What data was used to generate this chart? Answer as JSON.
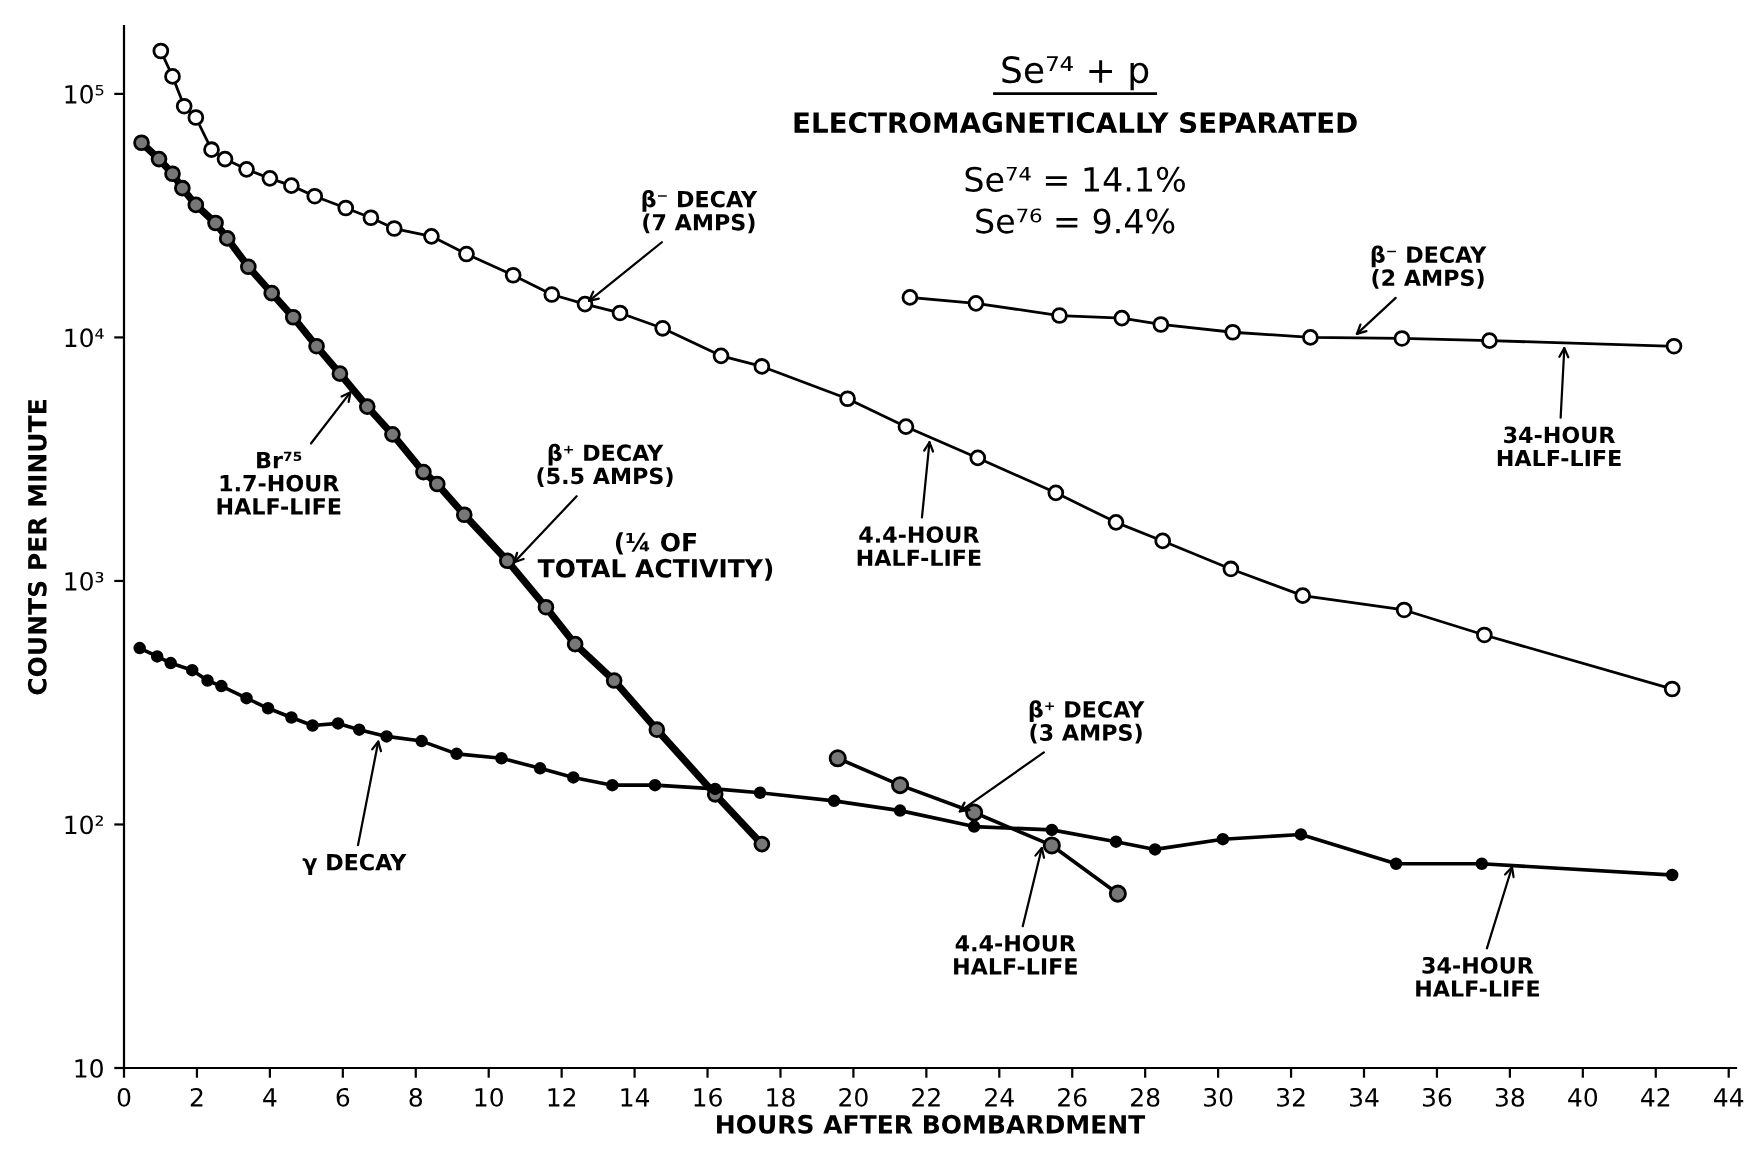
{
  "chart_data": {
    "type": "line",
    "title": "Se⁷⁴ + p",
    "subtitle": "ELECTROMAGNETICALLY SEPARATED",
    "xlabel": "HOURS AFTER BOMBARDMENT",
    "ylabel": "COUNTS PER MINUTE",
    "log": "y",
    "grid": false,
    "legend": false,
    "xlim": [
      0,
      44.2
    ],
    "xticks": [
      0,
      2,
      4,
      6,
      8,
      10,
      12,
      14,
      16,
      18,
      20,
      22,
      24,
      26,
      28,
      30,
      32,
      34,
      36,
      38,
      40,
      42,
      44
    ],
    "ylim": [
      10,
      190000
    ],
    "yticks": [
      10,
      {
        "value": 100,
        "label": "10²"
      },
      {
        "value": 1000,
        "label": "10³"
      },
      {
        "value": 10000,
        "label": "10⁴"
      },
      {
        "value": 100000,
        "label": "10⁵"
      }
    ],
    "series": [
      {
        "color": "#000000",
        "marker": "circle",
        "x": [
          1.01,
          1.33,
          1.65,
          1.97,
          2.4,
          2.77,
          3.36,
          4.0,
          4.59,
          5.23,
          6.08,
          6.77,
          7.41,
          8.43,
          9.39,
          10.67,
          11.73,
          12.64,
          13.6,
          14.77,
          16.37,
          17.49,
          19.84,
          21.44,
          23.41,
          25.55,
          27.2,
          28.48,
          30.35,
          32.32,
          35.1,
          37.3,
          42.45
        ],
        "values": [
          150000,
          118000,
          89000,
          80000,
          59000,
          54000,
          49000,
          45000,
          42000,
          38000,
          34000,
          31000,
          28000,
          26000,
          22000,
          18000,
          15000,
          13700,
          12600,
          10900,
          8400,
          7600,
          5600,
          4300,
          3200,
          2300,
          1740,
          1460,
          1120,
          870,
          760,
          600,
          360
        ]
      },
      {
        "color": "#000000",
        "marker": "circle",
        "x": [
          21.55,
          23.36,
          25.65,
          27.36,
          28.43,
          30.4,
          32.53,
          35.04,
          37.44,
          42.5
        ],
        "values": [
          14600,
          13800,
          12300,
          12000,
          11300,
          10500,
          10000,
          9900,
          9700,
          9200
        ]
      },
      {
        "color": "#000000",
        "marker": "circle",
        "x": [
          0.48,
          0.96,
          1.33,
          1.6,
          1.97,
          2.51,
          2.83,
          3.41,
          4.05,
          4.64,
          5.28,
          5.92,
          6.67,
          7.36,
          8.21,
          8.59,
          9.33,
          10.51,
          11.57,
          12.37,
          13.44,
          14.61,
          16.21,
          17.49
        ],
        "values": [
          63000,
          54000,
          47000,
          41000,
          35000,
          29500,
          25500,
          19500,
          15200,
          12100,
          9200,
          7100,
          5200,
          4000,
          2800,
          2500,
          1870,
          1210,
          780,
          550,
          390,
          245,
          133,
          83
        ]
      },
      {
        "color": "#000000",
        "marker": "circle",
        "x": [
          0.43,
          0.91,
          1.28,
          1.87,
          2.29,
          2.67,
          3.36,
          3.95,
          4.59,
          5.17,
          5.87,
          6.45,
          7.2,
          8.16,
          9.12,
          10.35,
          11.41,
          12.32,
          13.39,
          14.56,
          16.21,
          17.44,
          19.47,
          21.28,
          23.31,
          25.44,
          27.2,
          28.27,
          30.13,
          32.27,
          34.88,
          37.23,
          42.45
        ],
        "values": [
          530,
          490,
          460,
          430,
          390,
          370,
          330,
          300,
          275,
          255,
          260,
          245,
          230,
          220,
          195,
          187,
          170,
          156,
          145,
          145,
          140,
          135,
          125,
          114,
          98,
          95,
          85,
          79,
          87,
          91,
          69,
          69,
          62
        ]
      },
      {
        "color": "#000000",
        "marker": "circle",
        "x": [
          19.57,
          21.28,
          23.31,
          25.44,
          27.25
        ],
        "values": [
          187,
          145,
          112,
          82,
          52
        ]
      }
    ],
    "annotations": [
      {
        "text": "β⁻ DECAY\n(7 AMPS)",
        "x": 12.64,
        "y": 13700
      },
      {
        "text": "4.4-HOUR\nHALF-LIFE",
        "x": 22.1,
        "y": 3900
      },
      {
        "text": "β⁻ DECAY\n(2 AMPS)",
        "x": 33.7,
        "y": 10000
      },
      {
        "text": "34-HOUR\nHALF-LIFE",
        "x": 39.5,
        "y": 9500
      },
      {
        "text": "Br⁷⁵\n1.7-HOUR\nHALF-LIFE",
        "x": 6.3,
        "y": 6200
      },
      {
        "text": "β⁺ DECAY\n(5.5 AMPS)",
        "x": 10.6,
        "y": 1150
      },
      {
        "text": "γ DECAY",
        "x": 7.0,
        "y": 230
      },
      {
        "text": "β⁺ DECAY\n(3 AMPS)",
        "x": 22.8,
        "y": 110
      },
      {
        "text": "4.4-HOUR\nHALF-LIFE",
        "x": 25.2,
        "y": 84
      },
      {
        "text": "34-HOUR\nHALF-LIFE",
        "x": 38.1,
        "y": 70
      },
      "(¼ OF\nTOTAL ACTIVITY)",
      "Se⁷⁴ = 14.1%",
      "Se⁷⁶ = 9.4%"
    ]
  }
}
